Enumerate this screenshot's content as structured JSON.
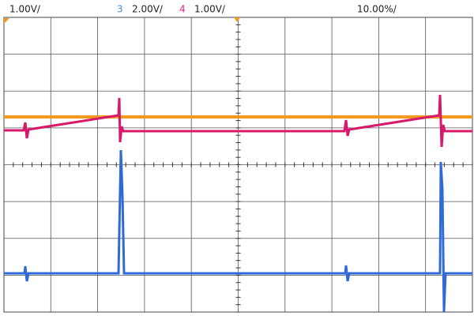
{
  "header": {
    "ch1_scale": "1.00V/",
    "ch3_label": "3",
    "ch3_scale": "2.00V/",
    "ch4_label": "4",
    "ch4_scale": "1.00V/",
    "timebase": "10.00%/"
  }
}
